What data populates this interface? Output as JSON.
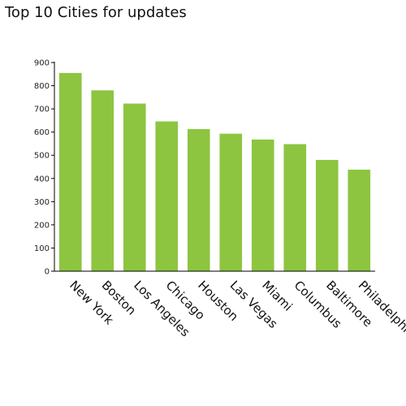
{
  "chart_data": {
    "type": "bar",
    "title": "Top 10 Cities for updates",
    "xlabel": "",
    "ylabel": "",
    "categories": [
      "New York",
      "Boston",
      "Los Angeles",
      "Chicago",
      "Houston",
      "Las Vegas",
      "Miami",
      "Columbus",
      "Baltimore",
      "Philadelphia"
    ],
    "values": [
      855,
      780,
      723,
      646,
      613,
      593,
      568,
      548,
      480,
      438
    ],
    "ylim": [
      0,
      900
    ],
    "yticks": [
      0,
      100,
      200,
      300,
      400,
      500,
      600,
      700,
      800,
      900
    ],
    "grid": false,
    "legend": "none",
    "bar_color": "#8dc540",
    "axis_color": "#000000"
  }
}
